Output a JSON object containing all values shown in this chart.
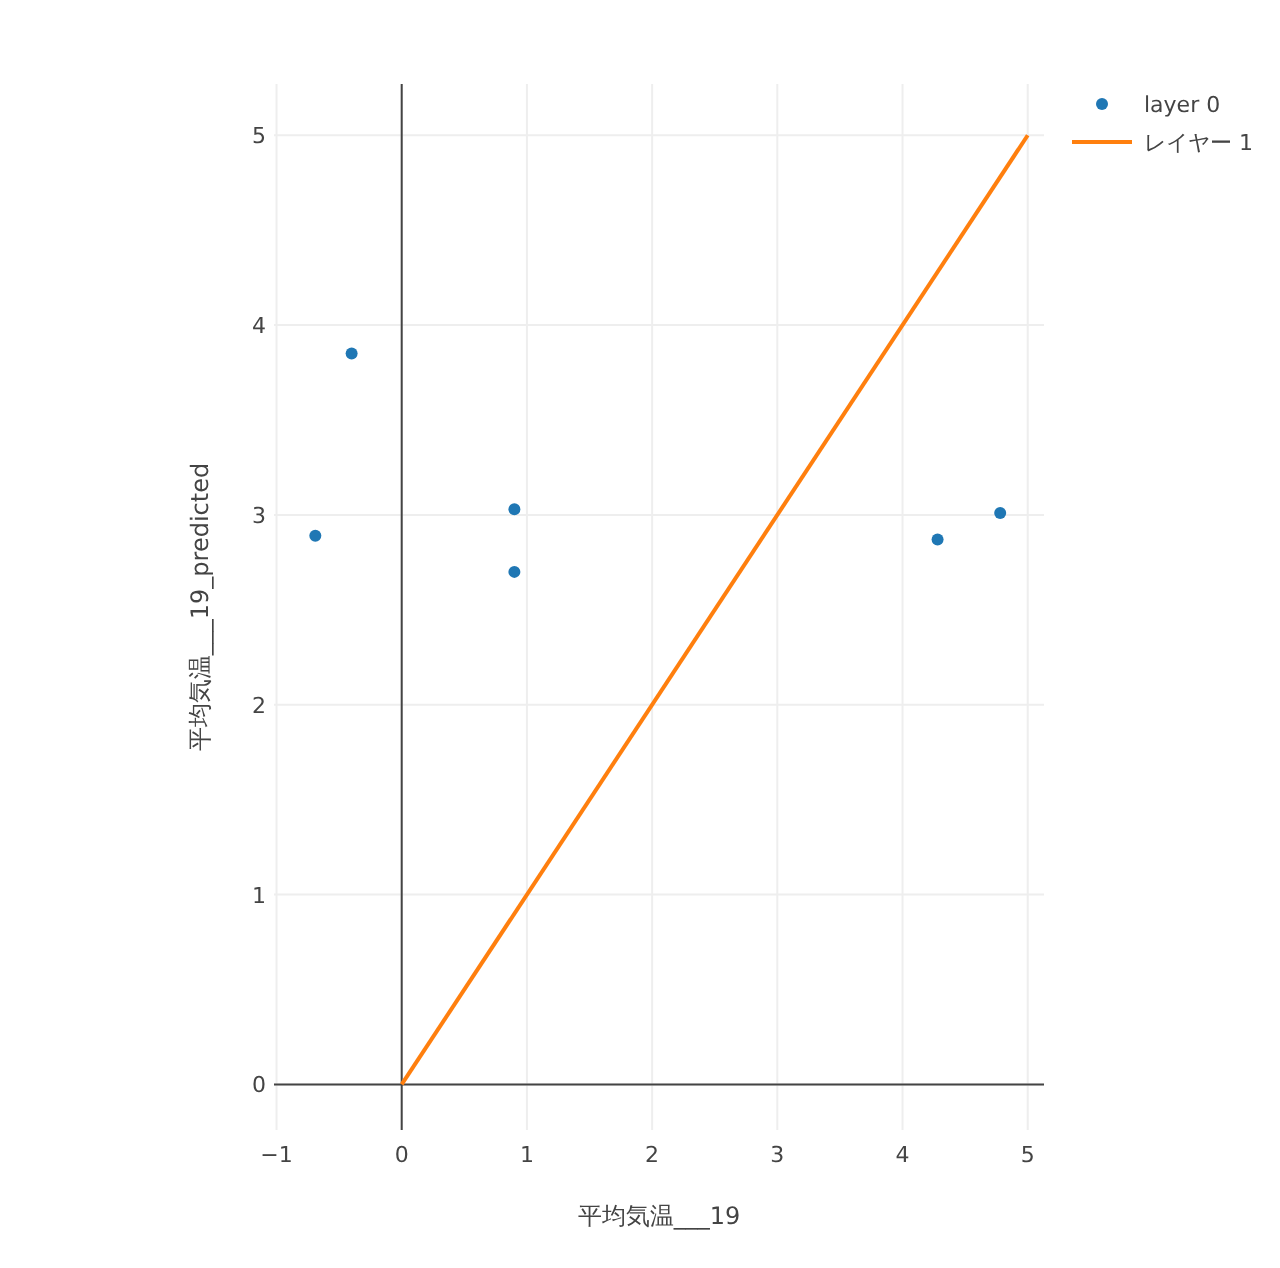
{
  "chart_data": {
    "type": "scatter",
    "xlabel": "平均気温___19",
    "ylabel": "平均気温___19_predicted",
    "xlim": [
      -1.02,
      5.13
    ],
    "ylim": [
      -0.24,
      5.27
    ],
    "xticks": [
      {
        "value": -1,
        "label": "−1"
      },
      0,
      1,
      2,
      3,
      4,
      5
    ],
    "yticks": [
      0,
      1,
      2,
      3,
      4,
      5
    ],
    "grid": true,
    "legend": "top right",
    "series": [
      {
        "name": "layer 0",
        "marker": "circle",
        "color": "#1f77b4",
        "x": [
          -0.69,
          -0.4,
          0.9,
          0.9,
          4.28,
          4.78
        ],
        "values": [
          2.89,
          3.85,
          3.03,
          2.7,
          2.87,
          3.01
        ]
      },
      {
        "name": "レイヤー 1",
        "type": "line",
        "marker": "none",
        "color": "#ff7f0e",
        "x": [
          0,
          5
        ],
        "values": [
          0,
          5
        ]
      }
    ]
  }
}
